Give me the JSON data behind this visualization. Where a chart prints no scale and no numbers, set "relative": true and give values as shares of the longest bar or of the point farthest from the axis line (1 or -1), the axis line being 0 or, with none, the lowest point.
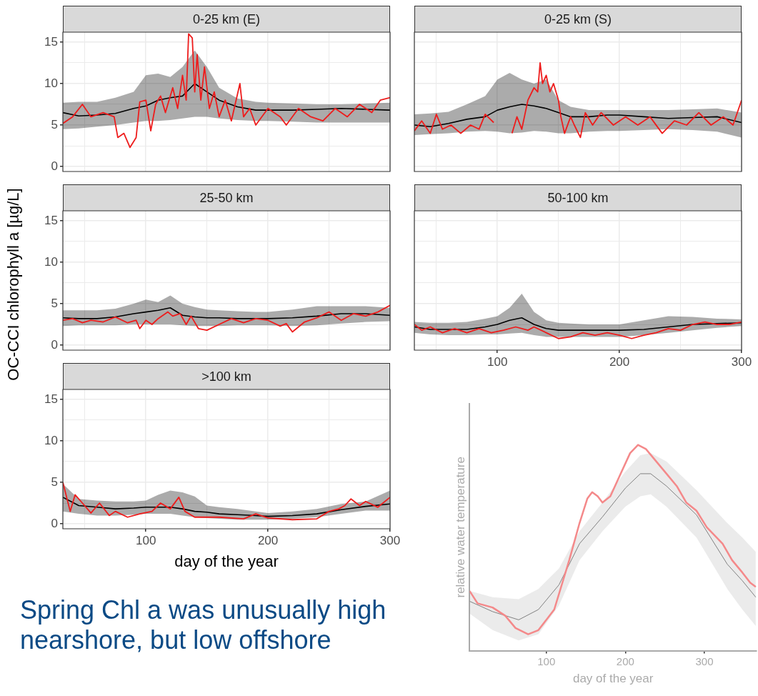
{
  "chart_data": [
    {
      "type": "line",
      "title": "0-25 km (E)",
      "ylabel": "OC-CCI chlorophyll a [µg/L]",
      "xlim": [
        32,
        300
      ],
      "ylim": [
        -0.6,
        16.2
      ],
      "xticks": [
        {
          "value": 50,
          "label": null
        },
        100,
        {
          "value": 150,
          "label": null
        },
        200,
        {
          "value": 250,
          "label": null
        },
        300
      ],
      "yticks": [
        0,
        {
          "value": 2.5,
          "label": null
        },
        5,
        {
          "value": 7.5,
          "label": null
        },
        10,
        {
          "value": 12.5,
          "label": null
        },
        15
      ],
      "tick_labels": "y",
      "grid": true,
      "legend": false,
      "series": [
        {
          "color": "#000000",
          "x": [
            32,
            45,
            60,
            75,
            90,
            100,
            110,
            120,
            130,
            140,
            150,
            160,
            175,
            190,
            200,
            220,
            240,
            260,
            280,
            300
          ],
          "values": [
            6.5,
            6.1,
            6.2,
            6.4,
            7,
            7.3,
            8,
            8.3,
            8.5,
            10,
            9,
            8,
            7.2,
            6.8,
            6.8,
            6.8,
            6.9,
            7,
            6.9,
            6.8
          ],
          "upper": [
            7.7,
            7.8,
            7.8,
            8.3,
            9,
            11,
            11.2,
            10.8,
            12,
            14,
            12,
            9.5,
            8.2,
            7.8,
            7.7,
            7.6,
            7.5,
            7.5,
            7.6,
            7.7
          ],
          "lower": [
            4.5,
            4.6,
            4.8,
            5,
            5.3,
            5.5,
            5.5,
            5.6,
            5.8,
            6,
            6,
            5.8,
            5.6,
            5.5,
            5.5,
            5.4,
            5.3,
            5.3,
            5.3,
            5.3
          ]
        },
        {
          "color": "#ee1c1c",
          "x": [
            32,
            40,
            48,
            55,
            65,
            74,
            77,
            82,
            87,
            92,
            95,
            100,
            104,
            108,
            112,
            116,
            122,
            126,
            130,
            133,
            135,
            138,
            140,
            142,
            145,
            148,
            152,
            156,
            160,
            165,
            170,
            177,
            180,
            185,
            190,
            200,
            210,
            215,
            225,
            235,
            245,
            255,
            265,
            275,
            285,
            292,
            300
          ],
          "values": [
            5.2,
            6,
            7.5,
            6,
            6.5,
            6,
            3.5,
            4,
            2.3,
            3.5,
            7.8,
            8,
            4.3,
            7.5,
            8.5,
            6.5,
            9.5,
            7,
            11,
            8,
            16,
            15.5,
            9,
            13.5,
            8,
            12,
            7,
            9,
            6,
            8,
            5.5,
            10,
            6,
            7,
            5,
            7,
            6,
            5,
            7,
            6,
            5.5,
            7,
            6,
            7.5,
            6.5,
            8,
            8.3
          ]
        }
      ]
    },
    {
      "type": "line",
      "title": "0-25 km (S)",
      "xlim": [
        32,
        300
      ],
      "ylim": [
        -0.6,
        16.2
      ],
      "xticks": [
        {
          "value": 50,
          "label": null
        },
        100,
        {
          "value": 150,
          "label": null
        },
        200,
        {
          "value": 250,
          "label": null
        },
        300
      ],
      "yticks": [
        0,
        {
          "value": 2.5,
          "label": null
        },
        5,
        {
          "value": 7.5,
          "label": null
        },
        10,
        {
          "value": 12.5,
          "label": null
        },
        15
      ],
      "tick_labels": false,
      "grid": true,
      "legend": false,
      "series": [
        {
          "color": "#000000",
          "x": [
            32,
            45,
            60,
            75,
            90,
            100,
            110,
            120,
            130,
            140,
            150,
            160,
            175,
            190,
            200,
            220,
            240,
            260,
            280,
            300
          ],
          "values": [
            5,
            4.8,
            5.2,
            5.7,
            6,
            6.8,
            7.2,
            7.5,
            7.3,
            7,
            6.5,
            6,
            6,
            6.2,
            6.2,
            6,
            5.8,
            5.9,
            6,
            5.3
          ],
          "upper": [
            6.3,
            6.4,
            6.6,
            7.5,
            8.5,
            10.5,
            11.3,
            10.5,
            10,
            10.5,
            8,
            7.2,
            6.8,
            6.8,
            6.8,
            6.8,
            6.8,
            6.9,
            7,
            6.5
          ],
          "lower": [
            3.8,
            3.9,
            4,
            4.2,
            4.3,
            4.2,
            4,
            4.1,
            4.3,
            4.2,
            4,
            4,
            4.2,
            4.3,
            4.3,
            4.4,
            4.5,
            4.4,
            4.2,
            3.5
          ]
        },
        {
          "color": "#ee1c1c",
          "x": [
            32,
            38,
            45,
            50,
            55,
            62,
            70,
            78,
            85,
            90,
            97,
            105,
            112,
            116,
            120,
            125,
            130,
            133,
            135,
            137,
            140,
            143,
            146,
            150,
            152,
            155,
            160,
            163,
            168,
            172,
            178,
            185,
            195,
            205,
            215,
            225,
            235,
            245,
            255,
            265,
            275,
            285,
            293,
            300
          ],
          "values": [
            4.3,
            5.5,
            4,
            6.3,
            4.5,
            5,
            4,
            5,
            4.5,
            6.3,
            5.3,
            null,
            4,
            6,
            4.5,
            8,
            9.5,
            9,
            12.5,
            10,
            11,
            9,
            10,
            8,
            6,
            4,
            6,
            5,
            3.5,
            6.5,
            5,
            6.5,
            5,
            6,
            5,
            6,
            4,
            5.5,
            5,
            6.5,
            5,
            6,
            5,
            8
          ]
        }
      ]
    },
    {
      "type": "line",
      "title": "25-50 km",
      "xlim": [
        32,
        300
      ],
      "ylim": [
        -0.6,
        16.2
      ],
      "xticks": [
        {
          "value": 50,
          "label": null
        },
        100,
        {
          "value": 150,
          "label": null
        },
        200,
        {
          "value": 250,
          "label": null
        },
        300
      ],
      "yticks": [
        0,
        {
          "value": 2.5,
          "label": null
        },
        5,
        {
          "value": 7.5,
          "label": null
        },
        10,
        {
          "value": 12.5,
          "label": null
        },
        15
      ],
      "tick_labels": "y",
      "grid": true,
      "legend": false,
      "series": [
        {
          "color": "#000000",
          "x": [
            32,
            45,
            60,
            75,
            90,
            100,
            110,
            120,
            130,
            140,
            150,
            160,
            175,
            190,
            200,
            220,
            240,
            260,
            280,
            300
          ],
          "values": [
            3.3,
            3.2,
            3.2,
            3.4,
            3.8,
            4,
            4.2,
            4.5,
            3.6,
            3.4,
            3.3,
            3.3,
            3.2,
            3.2,
            3.2,
            3.3,
            3.5,
            3.8,
            3.8,
            3.6
          ],
          "upper": [
            4.2,
            4.2,
            4.2,
            4.4,
            5,
            5.5,
            5.2,
            6,
            5,
            4.6,
            4.3,
            4.2,
            4.1,
            4,
            4,
            4.3,
            4.7,
            4.7,
            4.7,
            4.5
          ],
          "lower": [
            2.3,
            2.4,
            2.4,
            2.4,
            2.5,
            2.5,
            2.5,
            2.5,
            2.4,
            2.3,
            2.3,
            2.3,
            2.4,
            2.4,
            2.4,
            2.3,
            2.4,
            2.6,
            2.8,
            2.9
          ]
        },
        {
          "color": "#ee1c1c",
          "x": [
            32,
            40,
            48,
            55,
            65,
            75,
            85,
            92,
            95,
            100,
            105,
            110,
            118,
            122,
            128,
            133,
            137,
            143,
            150,
            160,
            170,
            180,
            190,
            200,
            210,
            215,
            220,
            230,
            240,
            250,
            260,
            270,
            280,
            290,
            300
          ],
          "values": [
            3,
            3.2,
            2.7,
            3,
            2.8,
            3.4,
            2.7,
            3,
            2,
            3,
            2.5,
            3.2,
            4,
            3.5,
            3.8,
            2.5,
            3.5,
            2,
            1.8,
            2.5,
            3.2,
            2.7,
            3.2,
            3,
            2.3,
            2.6,
            1.6,
            2.8,
            3.3,
            4,
            3,
            3.8,
            3.5,
            4,
            4.8
          ]
        }
      ]
    },
    {
      "type": "line",
      "title": "50-100 km",
      "xlim": [
        32,
        300
      ],
      "ylim": [
        -0.6,
        16.2
      ],
      "xticks": [
        {
          "value": 50,
          "label": null
        },
        100,
        {
          "value": 150,
          "label": null
        },
        200,
        {
          "value": 250,
          "label": null
        },
        300
      ],
      "yticks": [
        0,
        {
          "value": 2.5,
          "label": null
        },
        5,
        {
          "value": 7.5,
          "label": null
        },
        10,
        {
          "value": 12.5,
          "label": null
        },
        15
      ],
      "tick_labels": "x",
      "grid": true,
      "legend": false,
      "series": [
        {
          "color": "#000000",
          "x": [
            32,
            45,
            60,
            75,
            90,
            100,
            110,
            120,
            130,
            140,
            150,
            160,
            175,
            190,
            200,
            220,
            240,
            260,
            280,
            300
          ],
          "values": [
            2.2,
            1.9,
            1.9,
            1.9,
            2.2,
            2.5,
            3,
            3.3,
            2.5,
            2,
            1.8,
            1.8,
            1.8,
            1.8,
            1.8,
            1.9,
            2.2,
            2.5,
            2.6,
            2.7
          ],
          "upper": [
            2.8,
            2.7,
            2.7,
            2.8,
            3.2,
            3.5,
            4.5,
            6.2,
            4,
            3,
            2.7,
            2.6,
            2.5,
            2.5,
            2.5,
            3,
            3.5,
            3.4,
            3.2,
            3.1
          ],
          "lower": [
            1.5,
            1.3,
            1.2,
            1.2,
            1.3,
            1.3,
            1.4,
            1.5,
            1.2,
            1,
            1,
            1,
            1,
            1,
            1,
            1.2,
            1.5,
            1.8,
            2.1,
            2.3
          ]
        },
        {
          "color": "#ee1c1c",
          "x": [
            32,
            38,
            45,
            55,
            65,
            75,
            85,
            95,
            105,
            115,
            125,
            130,
            140,
            150,
            160,
            170,
            180,
            190,
            200,
            210,
            220,
            230,
            240,
            250,
            260,
            270,
            280,
            290,
            300
          ],
          "values": [
            2.5,
            1.8,
            2.2,
            1.5,
            2,
            1.5,
            2,
            1.5,
            1.8,
            2.2,
            1.8,
            2.2,
            1.5,
            0.8,
            1,
            1.5,
            1.2,
            1.5,
            1.2,
            0.8,
            1.2,
            1.5,
            2,
            1.8,
            2.5,
            2.8,
            2.5,
            2.5,
            2.8
          ]
        }
      ]
    },
    {
      "type": "line",
      "title": ">100 km",
      "xlabel": "day of the year",
      "xlim": [
        32,
        300
      ],
      "ylim": [
        -0.6,
        16.2
      ],
      "xticks": [
        {
          "value": 50,
          "label": null
        },
        100,
        {
          "value": 150,
          "label": null
        },
        200,
        {
          "value": 250,
          "label": null
        },
        300
      ],
      "yticks": [
        0,
        {
          "value": 2.5,
          "label": null
        },
        5,
        {
          "value": 7.5,
          "label": null
        },
        10,
        {
          "value": 12.5,
          "label": null
        },
        15
      ],
      "grid": true,
      "legend": false,
      "annotations": [
        "Spring Chl a was unusually high nearshore, but low offshore"
      ],
      "series": [
        {
          "color": "#000000",
          "x": [
            32,
            45,
            60,
            75,
            90,
            100,
            110,
            120,
            130,
            140,
            150,
            160,
            175,
            190,
            200,
            220,
            240,
            260,
            280,
            300
          ],
          "values": [
            3.2,
            2.2,
            2,
            1.8,
            1.9,
            2,
            2,
            2,
            1.8,
            1.5,
            1.4,
            1.2,
            1.1,
            1,
            0.9,
            1,
            1.2,
            1.7,
            2.1,
            2.4
          ],
          "upper": [
            4.8,
            3,
            2.8,
            2.7,
            2.7,
            2.8,
            3.5,
            4,
            3.8,
            3.3,
            2.2,
            2,
            1.8,
            1.5,
            1.3,
            1.5,
            1.8,
            2.4,
            2.7,
            4
          ],
          "lower": [
            1.5,
            1.2,
            1,
            1,
            1.1,
            1.2,
            1.2,
            1.2,
            1,
            0.8,
            0.7,
            0.6,
            0.5,
            0.5,
            0.5,
            0.6,
            0.8,
            1.2,
            1.6,
            1.6
          ]
        },
        {
          "color": "#ee1c1c",
          "x": [
            32,
            38,
            42,
            48,
            55,
            62,
            70,
            75,
            85,
            95,
            105,
            112,
            120,
            127,
            132,
            140,
            160,
            180,
            190,
            200,
            220,
            240,
            250,
            258,
            263,
            268,
            275,
            280,
            290,
            300
          ],
          "values": [
            5,
            1.5,
            3.5,
            2.5,
            1.3,
            2.5,
            1,
            1.5,
            0.8,
            1.2,
            1.5,
            2.5,
            1.8,
            3.2,
            1.5,
            0.8,
            0.8,
            0.6,
            1.2,
            0.7,
            0.5,
            0.6,
            1.5,
            1.8,
            2.2,
            3,
            2.2,
            2.7,
            2,
            3.2
          ]
        }
      ]
    },
    {
      "type": "line",
      "xlabel": "day of the year",
      "ylabel": "relative water temperature",
      "relative": true,
      "xlim": [
        3,
        366
      ],
      "xticks": [
        100,
        200,
        300
      ],
      "tick_labels": "x",
      "grid": false,
      "legend": false,
      "series": [
        {
          "color": "#808080",
          "x": [
            3,
            32,
            65,
            90,
            116,
            142,
            171,
            200,
            219,
            232,
            252,
            290,
            329,
            348,
            365
          ],
          "values": [
            0.24,
            0.19,
            0.15,
            0.2,
            0.32,
            0.52,
            0.65,
            0.79,
            0.86,
            0.86,
            0.8,
            0.66,
            0.42,
            0.34,
            0.26
          ],
          "upper": [
            0.29,
            0.26,
            0.25,
            0.3,
            0.4,
            0.58,
            0.72,
            0.87,
            0.95,
            0.96,
            0.92,
            0.78,
            0.62,
            0.55,
            0.48
          ],
          "lower": [
            0.18,
            0.1,
            0.05,
            0.08,
            0.22,
            0.44,
            0.58,
            0.7,
            0.75,
            0.76,
            0.7,
            0.55,
            0.3,
            0.2,
            0.12
          ]
        },
        {
          "color": "#f4898a",
          "x": [
            3,
            13,
            32,
            48,
            61,
            77,
            90,
            110,
            129,
            142,
            152,
            158,
            165,
            171,
            181,
            194,
            206,
            216,
            226,
            239,
            252,
            265,
            277,
            290,
            303,
            323,
            335,
            348,
            358,
            365
          ],
          "values": [
            0.29,
            0.23,
            0.21,
            0.17,
            0.11,
            0.08,
            0.1,
            0.2,
            0.44,
            0.62,
            0.74,
            0.77,
            0.75,
            0.72,
            0.75,
            0.86,
            0.96,
            1,
            0.98,
            0.92,
            0.86,
            0.8,
            0.72,
            0.68,
            0.6,
            0.52,
            0.44,
            0.38,
            0.33,
            0.31
          ]
        }
      ]
    }
  ]
}
